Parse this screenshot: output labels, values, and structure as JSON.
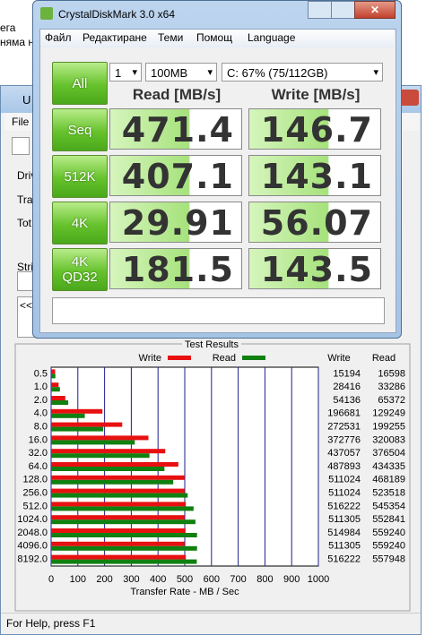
{
  "background_window": {
    "snippets": [
      "ега",
      "няма н"
    ],
    "title": "U",
    "menu": [
      "File"
    ],
    "labels": [
      "Driv",
      "Tra",
      "Tot",
      "Strip",
      "<<"
    ],
    "status": "For Help, press F1"
  },
  "crystaldiskmark": {
    "title": "CrystalDiskMark 3.0 x64",
    "menu": [
      "Файл",
      "Редактиране",
      "Теми",
      "Помощ",
      "Language"
    ],
    "all_button": "All",
    "count": "1",
    "size": "100MB",
    "drive": "C: 67% (75/112GB)",
    "read_header": "Read [MB/s]",
    "write_header": "Write [MB/s]",
    "rows": [
      {
        "label": [
          "Seq"
        ],
        "read": 471.4,
        "write": 146.7
      },
      {
        "label": [
          "512K"
        ],
        "read": 407.1,
        "write": 143.1
      },
      {
        "label": [
          "4K"
        ],
        "read": 29.91,
        "write": 56.07
      },
      {
        "label": [
          "4K",
          "QD32"
        ],
        "read": 181.5,
        "write": 143.5
      }
    ]
  },
  "chart_data": {
    "type": "bar",
    "orientation": "horizontal",
    "title": "Test Results",
    "xlabel": "Transfer Rate - MB / Sec",
    "categories": [
      "0.5",
      "1.0",
      "2.0",
      "4.0",
      "8.0",
      "16.0",
      "32.0",
      "64.0",
      "128.0",
      "256.0",
      "512.0",
      "1024.0",
      "2048.0",
      "4096.0",
      "8192.0"
    ],
    "series": [
      {
        "name": "Write",
        "color": "#e81010",
        "values": [
          15,
          28,
          53,
          192,
          266,
          364,
          427,
          476,
          499,
          499,
          504,
          499,
          503,
          499,
          504
        ]
      },
      {
        "name": "Read",
        "color": "#108010",
        "values": [
          16,
          33,
          64,
          126,
          195,
          313,
          368,
          424,
          457,
          511,
          533,
          540,
          546,
          546,
          545
        ]
      }
    ],
    "xlim": [
      0,
      1000
    ],
    "xticks": [
      0,
      100,
      200,
      300,
      400,
      500,
      600,
      700,
      800,
      900,
      1000
    ],
    "grid": true,
    "table": {
      "headers": [
        "Write",
        "Read"
      ],
      "rows": [
        [
          15194,
          16598
        ],
        [
          28416,
          33286
        ],
        [
          54136,
          65372
        ],
        [
          196681,
          129249
        ],
        [
          272531,
          199255
        ],
        [
          372776,
          320083
        ],
        [
          437057,
          376504
        ],
        [
          487893,
          434335
        ],
        [
          511024,
          468189
        ],
        [
          511024,
          523518
        ],
        [
          516222,
          545354
        ],
        [
          511305,
          552841
        ],
        [
          514984,
          559240
        ],
        [
          511305,
          559240
        ],
        [
          516222,
          557948
        ]
      ]
    }
  }
}
